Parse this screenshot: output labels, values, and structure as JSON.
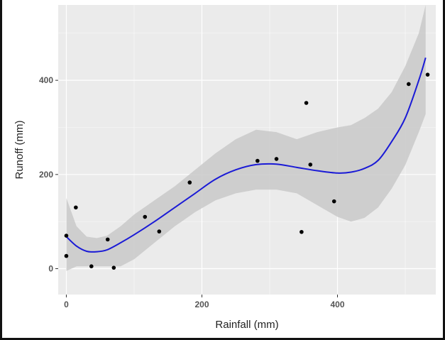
{
  "chart_data": {
    "type": "scatter",
    "title": "",
    "xlabel": "Rainfall (mm)",
    "ylabel": "Runoff (mm)",
    "xlim": [
      -12,
      545
    ],
    "ylim": [
      -55,
      560
    ],
    "x_ticks": [
      0,
      200,
      400
    ],
    "x_tick_labels": [
      "0",
      "200",
      "400"
    ],
    "y_ticks": [
      0,
      200,
      400
    ],
    "y_tick_labels": [
      "0",
      "200",
      "400"
    ],
    "grid": true,
    "legend": "none",
    "points": [
      {
        "x": 0,
        "y": 70
      },
      {
        "x": 0,
        "y": 27
      },
      {
        "x": 14,
        "y": 130
      },
      {
        "x": 37,
        "y": 5
      },
      {
        "x": 61,
        "y": 62
      },
      {
        "x": 70,
        "y": 2
      },
      {
        "x": 116,
        "y": 110
      },
      {
        "x": 137,
        "y": 79
      },
      {
        "x": 182,
        "y": 183
      },
      {
        "x": 282,
        "y": 229
      },
      {
        "x": 310,
        "y": 233
      },
      {
        "x": 347,
        "y": 78
      },
      {
        "x": 354,
        "y": 352
      },
      {
        "x": 360,
        "y": 221
      },
      {
        "x": 395,
        "y": 143
      },
      {
        "x": 505,
        "y": 392
      },
      {
        "x": 533,
        "y": 412
      }
    ],
    "smooth": {
      "x": [
        0,
        15,
        30,
        45,
        60,
        80,
        100,
        130,
        160,
        190,
        220,
        250,
        280,
        310,
        340,
        370,
        400,
        420,
        440,
        460,
        480,
        500,
        520,
        530
      ],
      "y": [
        68,
        48,
        37,
        36,
        40,
        55,
        72,
        100,
        130,
        160,
        190,
        210,
        221,
        222,
        215,
        208,
        203,
        205,
        213,
        230,
        270,
        320,
        400,
        448
      ],
      "lower": [
        -5,
        5,
        5,
        5,
        5,
        5,
        20,
        55,
        90,
        120,
        145,
        160,
        168,
        168,
        160,
        135,
        110,
        100,
        108,
        130,
        170,
        220,
        290,
        328
      ],
      "upper": [
        150,
        90,
        68,
        65,
        70,
        90,
        115,
        145,
        175,
        210,
        245,
        275,
        295,
        290,
        275,
        290,
        300,
        305,
        320,
        340,
        375,
        430,
        500,
        560
      ]
    },
    "colors": {
      "panel_background": "#ebebeb",
      "grid_major": "#ffffff",
      "line": "#1a1ad6",
      "ribbon": "#c9c9c9",
      "point": "#000000"
    }
  }
}
